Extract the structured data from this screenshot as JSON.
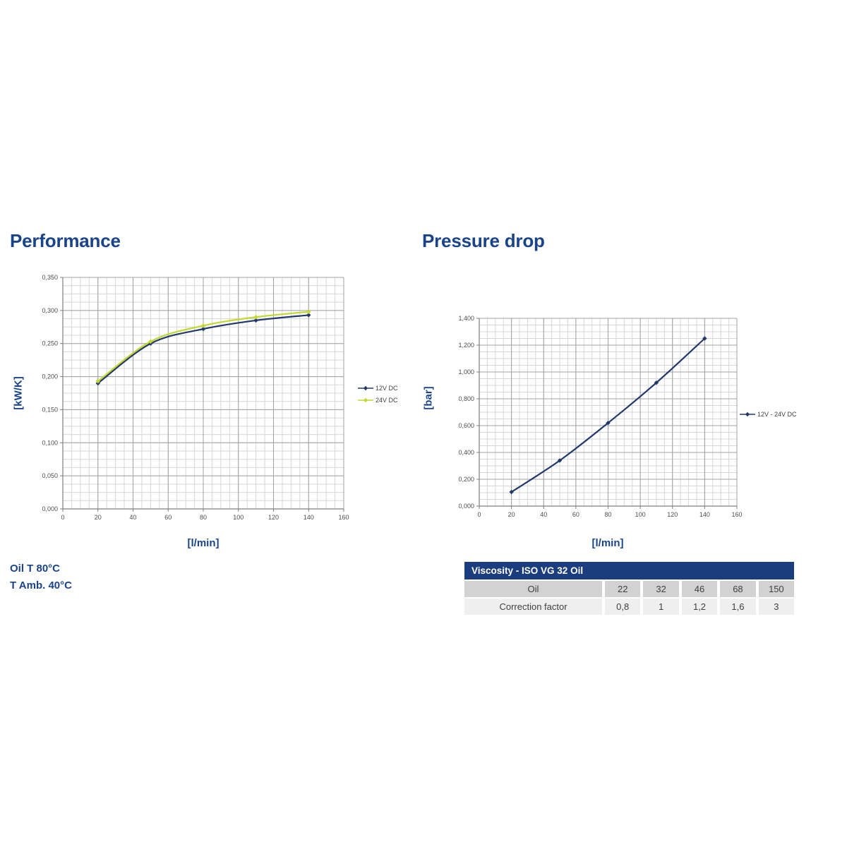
{
  "colors": {
    "background": "#ffffff",
    "title_blue": "#1a4489",
    "grid_minor": "#d7d7d7",
    "grid_major": "#a0a0a0",
    "axis": "#7f7f7f",
    "tick_text": "#4d4d4d",
    "navy_series": "#20386b",
    "green_series": "#c3d82e",
    "table_header_bg": "#1b3d7d",
    "table_header_text": "#ffffff",
    "table_row1_bg": "#d2d2d2",
    "table_row2_bg": "#efefef"
  },
  "sections": {
    "performance": {
      "title": "Performance",
      "notes": [
        "Oil T 80°C",
        "T Amb. 40°C"
      ]
    },
    "pressure_drop": {
      "title": "Pressure drop"
    }
  },
  "chart_data": [
    {
      "type": "line",
      "title": "Performance",
      "xlabel": "[l/min]",
      "ylabel": "[kW/K]",
      "xlim": [
        0,
        160
      ],
      "ylim": [
        0,
        0.35
      ],
      "xticks": [
        0,
        20,
        40,
        60,
        80,
        100,
        120,
        140,
        160
      ],
      "yticks": [
        0,
        0.05,
        0.1,
        0.15,
        0.2,
        0.25,
        0.3,
        0.35
      ],
      "ytick_decimals": 3,
      "decimal_comma": true,
      "grid": {
        "on": true,
        "x_minor": 5,
        "y_minor": 0.0125
      },
      "legend_position": "right",
      "x": [
        20,
        50,
        80,
        110,
        140
      ],
      "series": [
        {
          "name": "12V DC",
          "color": "#20386b",
          "values": [
            0.19,
            0.25,
            0.272,
            0.285,
            0.293
          ]
        },
        {
          "name": "24V DC",
          "color": "#c3d82e",
          "values": [
            0.193,
            0.253,
            0.277,
            0.29,
            0.298
          ]
        }
      ]
    },
    {
      "type": "line",
      "title": "Pressure drop",
      "xlabel": "[l/min]",
      "ylabel": "[bar]",
      "xlim": [
        0,
        160
      ],
      "ylim": [
        0,
        1.4
      ],
      "xticks": [
        0,
        20,
        40,
        60,
        80,
        100,
        120,
        140,
        160
      ],
      "yticks": [
        0,
        0.2,
        0.4,
        0.6,
        0.8,
        1.0,
        1.2,
        1.4
      ],
      "ytick_decimals": 3,
      "decimal_comma": true,
      "grid": {
        "on": true,
        "x_minor": 5,
        "y_minor": 0.05
      },
      "legend_position": "right",
      "x": [
        20,
        50,
        80,
        110,
        140
      ],
      "series": [
        {
          "name": "12V - 24V DC",
          "color": "#20386b",
          "values": [
            0.105,
            0.34,
            0.62,
            0.92,
            1.25
          ]
        }
      ]
    }
  ],
  "table": {
    "header": "Viscosity - ISO VG 32 Oil",
    "rows": [
      {
        "label": "Oil",
        "values": [
          "22",
          "32",
          "46",
          "68",
          "150"
        ]
      },
      {
        "label": "Correction factor",
        "values": [
          "0,8",
          "1",
          "1,2",
          "1,6",
          "3"
        ]
      }
    ]
  }
}
